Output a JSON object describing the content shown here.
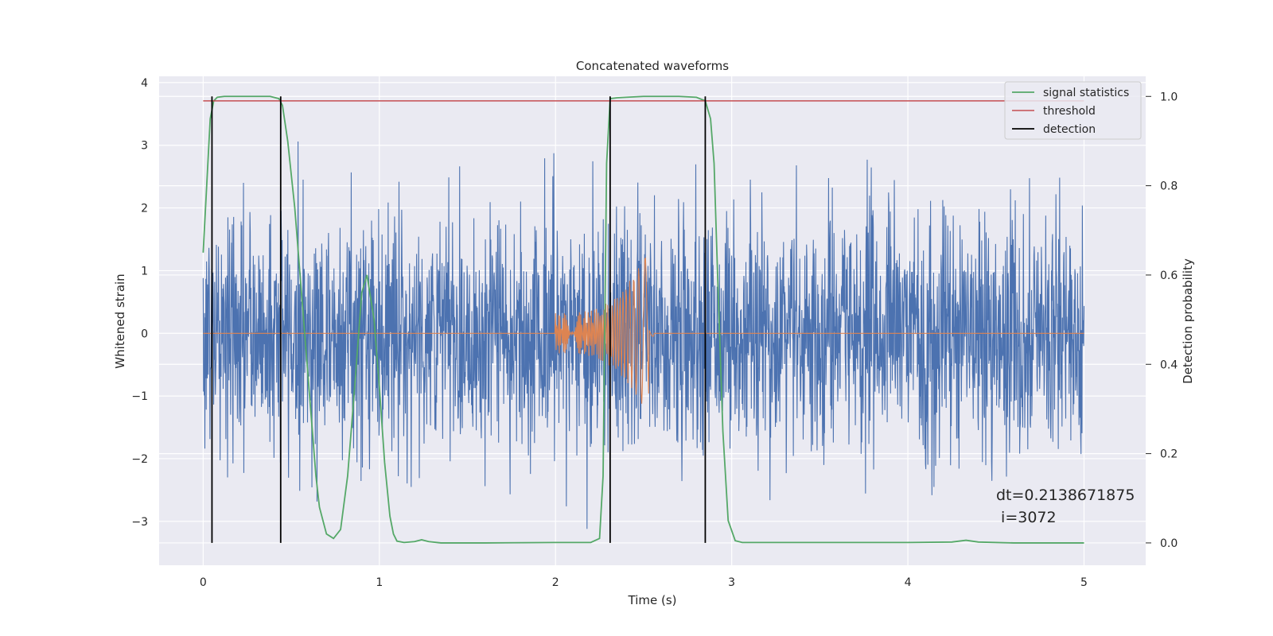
{
  "chart_data": {
    "type": "line",
    "title": "Concatenated waveforms",
    "xlabel": "Time (s)",
    "ylabel": "Whitened strain",
    "y2label": "Detection probability",
    "xlim": [
      -0.25,
      5.35
    ],
    "ylim": [
      -3.7,
      4.1
    ],
    "y2lim": [
      -0.05,
      1.045
    ],
    "xticks": [
      0,
      1,
      2,
      3,
      4,
      5
    ],
    "yticks": [
      -3,
      -2,
      -1,
      0,
      1,
      2,
      3,
      4
    ],
    "y2ticks": [
      0.0,
      0.2,
      0.4,
      0.6,
      0.8,
      1.0
    ],
    "xtick_labels": [
      "0",
      "1",
      "2",
      "3",
      "4",
      "5"
    ],
    "ytick_labels": [
      "−3",
      "−2",
      "−1",
      "0",
      "1",
      "2",
      "3",
      "4"
    ],
    "y2tick_labels": [
      "0.0",
      "0.2",
      "0.4",
      "0.6",
      "0.8",
      "1.0"
    ],
    "grid": true,
    "legend_position": "top-right",
    "legend": [
      "signal statistics",
      "threshold",
      "detection"
    ],
    "series": [
      {
        "name": "whitened strain",
        "axis": "left",
        "color": "#4c72b0",
        "x_range": [
          0,
          5
        ],
        "envelope_core": [
          -1.6,
          1.6
        ],
        "envelope_peak": [
          -3.4,
          3.4
        ]
      },
      {
        "name": "injected waveform",
        "axis": "left",
        "color": "#dd8452",
        "chirp_start": 2.0,
        "chirp_end": 2.53,
        "amp_start": 0.32,
        "amp_end_upper": 1.35,
        "amp_end_lower": -1.2
      },
      {
        "name": "signal statistics",
        "axis": "right",
        "color": "#55a868",
        "x": [
          0,
          0.02,
          0.04,
          0.06,
          0.08,
          0.12,
          0.2,
          0.3,
          0.38,
          0.43,
          0.45,
          0.48,
          0.52,
          0.56,
          0.6,
          0.64,
          0.66,
          0.7,
          0.74,
          0.78,
          0.82,
          0.86,
          0.9,
          0.93,
          0.97,
          1.0,
          1.03,
          1.06,
          1.08,
          1.1,
          1.14,
          1.2,
          1.24,
          1.28,
          1.35,
          1.6,
          2.0,
          2.2,
          2.25,
          2.27,
          2.29,
          2.31,
          2.35,
          2.4,
          2.5,
          2.6,
          2.7,
          2.8,
          2.85,
          2.88,
          2.9,
          2.92,
          2.95,
          2.98,
          3.02,
          3.06,
          3.2,
          4.0,
          4.25,
          4.33,
          4.4,
          4.6,
          5.0
        ],
        "values": [
          0.65,
          0.8,
          0.95,
          0.99,
          0.998,
          1.0,
          1.0,
          1.0,
          1.0,
          0.995,
          0.98,
          0.9,
          0.75,
          0.55,
          0.35,
          0.15,
          0.08,
          0.02,
          0.01,
          0.03,
          0.15,
          0.35,
          0.56,
          0.6,
          0.5,
          0.35,
          0.18,
          0.06,
          0.02,
          0.004,
          0.001,
          0.003,
          0.007,
          0.003,
          0.0,
          0.0,
          0.001,
          0.001,
          0.01,
          0.15,
          0.85,
          0.995,
          0.997,
          0.998,
          1.0,
          1.0,
          1.0,
          0.998,
          0.99,
          0.95,
          0.85,
          0.6,
          0.25,
          0.05,
          0.005,
          0.001,
          0.001,
          0.001,
          0.002,
          0.006,
          0.002,
          0.0,
          0.0
        ]
      },
      {
        "name": "threshold",
        "axis": "right",
        "color": "#c44e52",
        "x": [
          0,
          5
        ],
        "values": [
          0.99,
          0.99
        ]
      },
      {
        "name": "detection",
        "axis": "right",
        "color": "#000000",
        "x": [
          0.05,
          0.44,
          2.31,
          2.85
        ],
        "y_range": [
          0.0,
          1.0
        ]
      }
    ],
    "annotations": [
      "dt=0.2138671875",
      " i=3072"
    ]
  }
}
